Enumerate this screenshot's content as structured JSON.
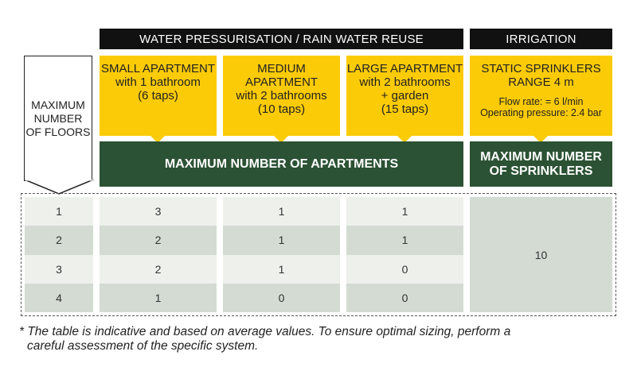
{
  "headers": {
    "water": "WATER PRESSURISATION / RAIN WATER REUSE",
    "irrigation": "IRRIGATION"
  },
  "floors_label": [
    "MAXIMUM",
    "NUMBER",
    "OF FLOORS"
  ],
  "apartments": [
    {
      "lines": [
        "SMALL APARTMENT",
        "with 1 bathroom",
        "(6 taps)"
      ]
    },
    {
      "lines": [
        "MEDIUM APARTMENT",
        "with 2 bathrooms",
        "(10 taps)"
      ]
    },
    {
      "lines": [
        "LARGE APARTMENT",
        "with 2 bathrooms",
        "+ garden",
        "(15 taps)"
      ]
    }
  ],
  "sprinkler": {
    "lines": [
      "STATIC SPRINKLERS",
      "RANGE 4 m"
    ],
    "flow": "Flow rate: = 6 l/min",
    "pressure": "Operating pressure: 2.4 bar"
  },
  "green": {
    "apartments": "MAXIMUM NUMBER OF APARTMENTS",
    "sprinklers": [
      "MAXIMUM NUMBER",
      "OF SPRINKLERS"
    ]
  },
  "table": {
    "rows": [
      {
        "floors": "1",
        "small": "3",
        "medium": "1",
        "large": "1"
      },
      {
        "floors": "2",
        "small": "2",
        "medium": "1",
        "large": "1"
      },
      {
        "floors": "3",
        "small": "2",
        "medium": "1",
        "large": "0"
      },
      {
        "floors": "4",
        "small": "1",
        "medium": "0",
        "large": "0"
      }
    ],
    "sprinklers": "10"
  },
  "footnote": [
    "* The table is indicative and based on average values. To ensure optimal sizing, perform a",
    "careful assessment of the specific system."
  ],
  "colors": {
    "black": "#111111",
    "yellow": "#fccb07",
    "green": "#2b5234",
    "row_light": "#eef0ec",
    "row_dark": "#d3dbd3"
  }
}
